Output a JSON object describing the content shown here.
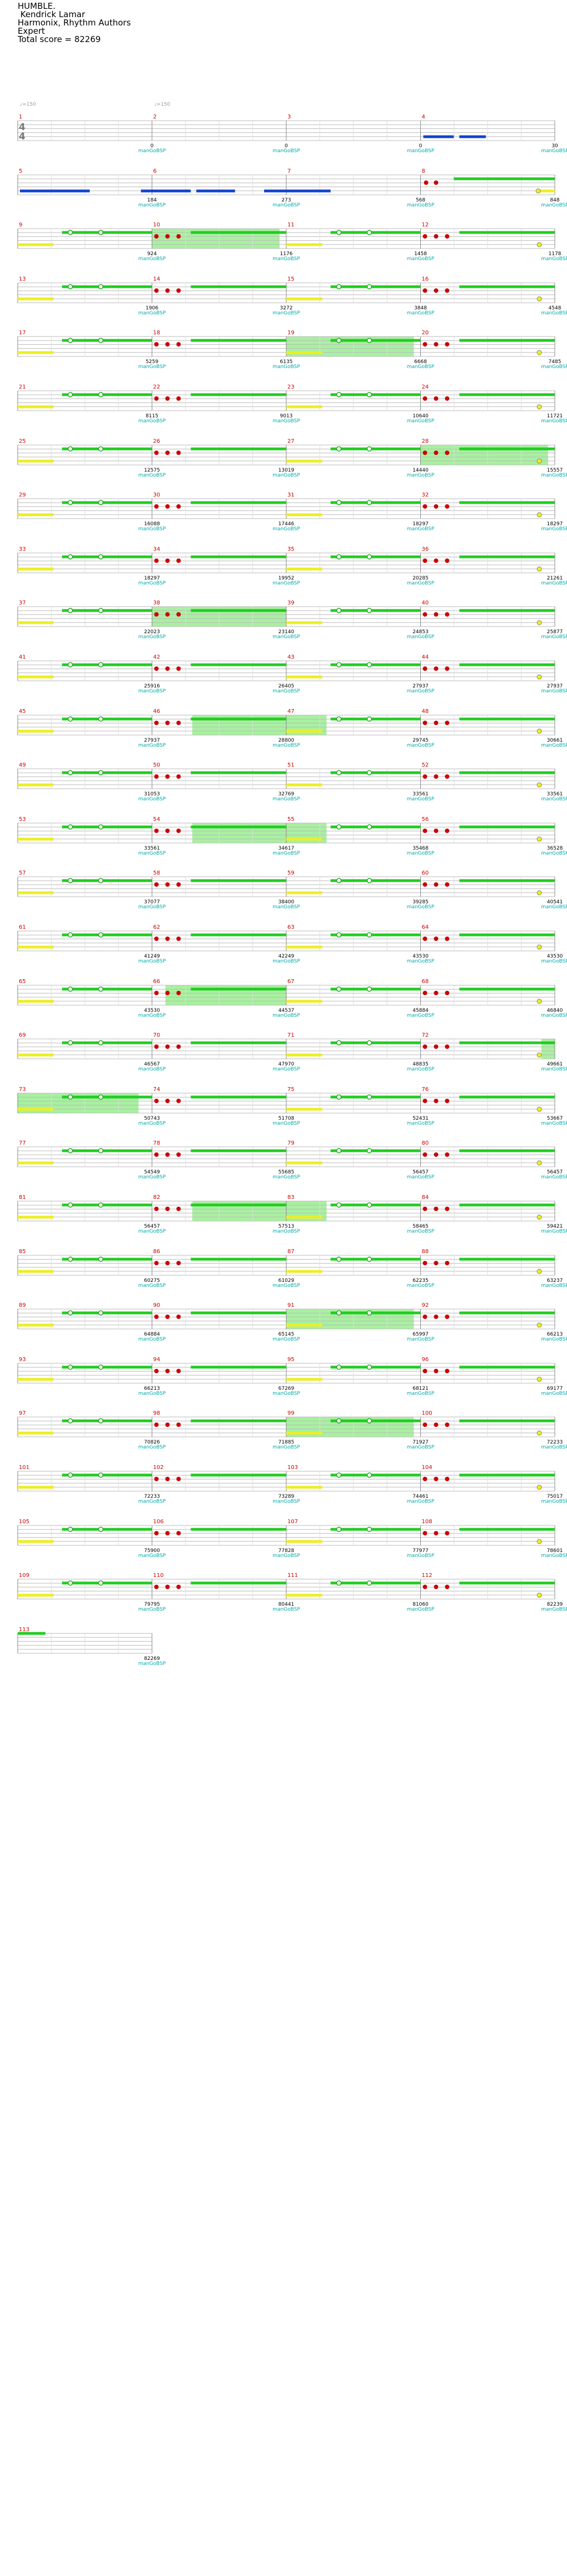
{
  "header": {
    "title": "HUMBLE.",
    "artist": " Kendrick Lamar",
    "charter": "Harmonix, Rhythm Authors",
    "difficulty": "Expert",
    "total_score_label": "Total score = 82269"
  },
  "first_row": {
    "bpm_labels": [
      "♩=150",
      "♩=150"
    ],
    "time_signature": [
      "4",
      "4"
    ]
  },
  "mf_label": "manGoBSP",
  "measure_scores": [
    "0",
    "0",
    "0",
    "30",
    "184",
    "273",
    "568",
    "848",
    "924",
    "1176",
    "1458",
    "1178",
    "1906",
    "3272",
    "3848",
    "4548",
    "5259",
    "6135",
    "6668",
    "7485",
    "8115",
    "9013",
    "10640",
    "11721",
    "12575",
    "13019",
    "14440",
    "15557",
    "16088",
    "17446",
    "18297",
    "18297",
    "18297",
    "19952",
    "20285",
    "21261",
    "22023",
    "23140",
    "24853",
    "25877",
    "25916",
    "26405",
    "27937",
    "27937",
    "27937",
    "28800",
    "29745",
    "30661",
    "31053",
    "32769",
    "33561",
    "33561",
    "33561",
    "34617",
    "35468",
    "36528",
    "37077",
    "38400",
    "39285",
    "40541",
    "41249",
    "42249",
    "43530",
    "43530",
    "43530",
    "44537",
    "45884",
    "46840",
    "46567",
    "47970",
    "48835",
    "49661",
    "50743",
    "51708",
    "52431",
    "53667",
    "54549",
    "55685",
    "56457",
    "56457",
    "56457",
    "57513",
    "58465",
    "59421",
    "60275",
    "61029",
    "62235",
    "63237",
    "64884",
    "65145",
    "65997",
    "66213",
    "66213",
    "67269",
    "68121",
    "69177",
    "70826",
    "71885",
    "71927",
    "72233",
    "72233",
    "73289",
    "74461",
    "75017",
    "75900",
    "77828",
    "77977",
    "78601",
    "79795",
    "80441",
    "81060",
    "82239",
    "82269"
  ]
}
